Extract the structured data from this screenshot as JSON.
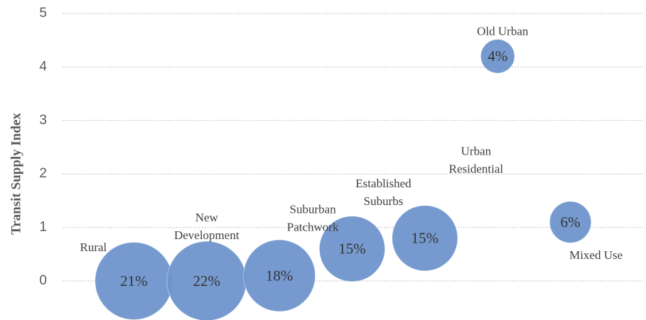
{
  "chart_data": {
    "type": "bubble",
    "y_label": "Transit Supply Index",
    "categories": [
      "Rural",
      "New\nDevelopment",
      "Suburban\nPatchwork",
      "Established\nSuburbs",
      "Urban\nResidential",
      "Old Urban",
      "Mixed Use"
    ],
    "x": [
      1,
      2,
      3,
      4,
      5,
      6,
      7
    ],
    "values": [
      0,
      0,
      0.1,
      0.6,
      0.8,
      4.2,
      1.1
    ],
    "sizes": [
      21,
      22,
      18,
      15,
      15,
      4,
      6
    ],
    "value_labels": [
      "21%",
      "22%",
      "18%",
      "15%",
      "15%",
      "4%",
      "6%"
    ],
    "color": "#6f95cc",
    "xlim": [
      0,
      8
    ],
    "ylim": [
      0,
      5
    ],
    "yticks": [
      0,
      1,
      2,
      3,
      4,
      5
    ],
    "grid": true
  }
}
